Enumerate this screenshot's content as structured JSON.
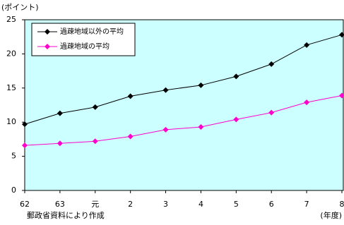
{
  "chart_data": {
    "type": "line",
    "y_label": "(ポイント)",
    "x_label": "(年度)",
    "note": "郵政省資料により作成",
    "categories": [
      "62",
      "63",
      "元",
      "2",
      "3",
      "4",
      "5",
      "6",
      "7",
      "8"
    ],
    "series": [
      {
        "name": "過疎地域以外の平均",
        "color": "#000000",
        "values": [
          9.7,
          11.3,
          12.2,
          13.8,
          14.7,
          15.4,
          16.7,
          18.5,
          21.3,
          22.8
        ]
      },
      {
        "name": "過疎地域の平均",
        "color": "#ff00cc",
        "values": [
          6.6,
          6.9,
          7.2,
          7.9,
          8.9,
          9.3,
          10.4,
          11.4,
          12.9,
          13.9
        ]
      }
    ],
    "ylim": [
      0,
      25
    ],
    "yticks": [
      0,
      5,
      10,
      15,
      20,
      25
    ],
    "plot_background": "#ccffff",
    "grid": false,
    "legend": "top-left"
  }
}
